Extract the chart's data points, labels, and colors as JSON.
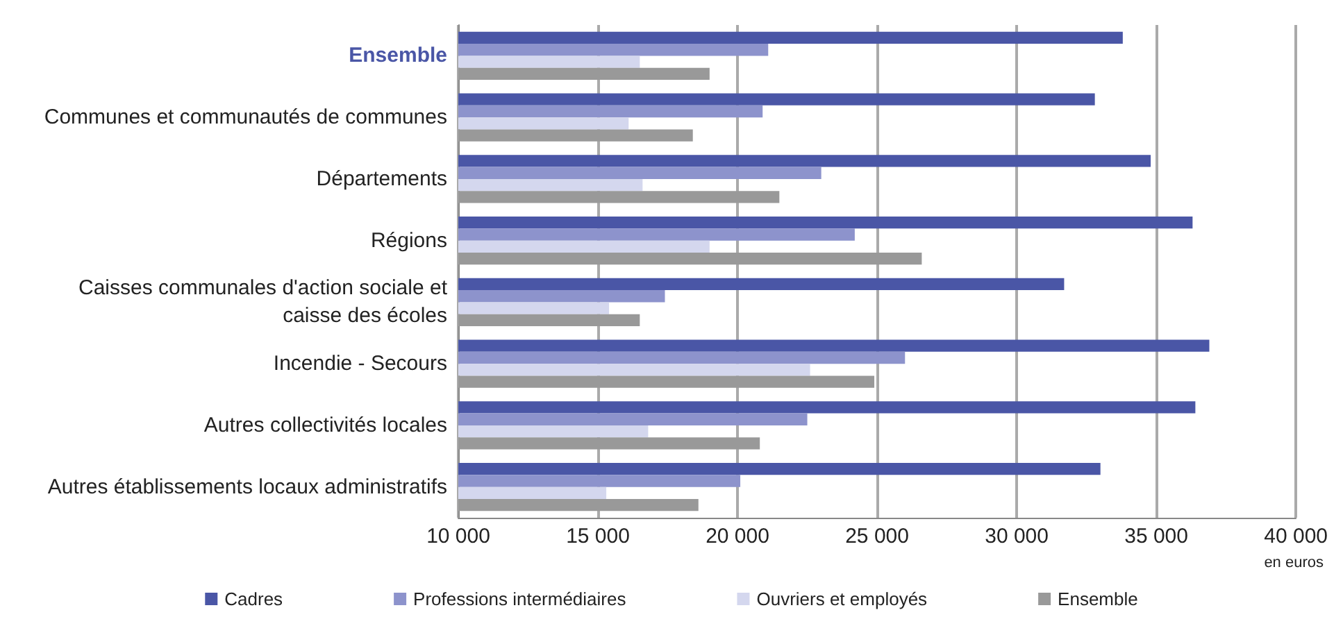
{
  "chart_data": {
    "type": "bar",
    "orientation": "horizontal",
    "xlabel": "en euros",
    "categories": [
      "Ensemble",
      "Communes et communautés de communes",
      "Départements",
      "Régions",
      "Caisses communales d'action sociale et\ncaisse des écoles",
      "Incendie - Secours",
      "Autres collectivités locales",
      "Autres établissements locaux administratifs"
    ],
    "series": [
      {
        "name": "Cadres",
        "color": "#4a56a6",
        "values": [
          33800,
          32800,
          34800,
          36300,
          31700,
          36900,
          36400,
          33000
        ]
      },
      {
        "name": "Professions intermédiaires",
        "color": "#8d93cc",
        "values": [
          21100,
          20900,
          23000,
          24200,
          17400,
          26000,
          22500,
          20100
        ]
      },
      {
        "name": "Ouvriers et employés",
        "color": "#d4d7ee",
        "values": [
          16500,
          16100,
          16600,
          19000,
          15400,
          22600,
          16800,
          15300
        ]
      },
      {
        "name": "Ensemble",
        "color": "#999999",
        "values": [
          19000,
          18400,
          21500,
          26600,
          16500,
          24900,
          20800,
          18600
        ]
      }
    ],
    "xlim": [
      10000,
      40000
    ],
    "xticks": [
      {
        "value": 10000,
        "label": "10 000"
      },
      {
        "value": 15000,
        "label": "15 000"
      },
      {
        "value": 20000,
        "label": "20 000"
      },
      {
        "value": 25000,
        "label": "25 000"
      },
      {
        "value": 30000,
        "label": "30 000"
      },
      {
        "value": 35000,
        "label": "35 000"
      },
      {
        "value": 40000,
        "label": "40 000"
      }
    ],
    "grid": "x",
    "legend": "bottom"
  }
}
